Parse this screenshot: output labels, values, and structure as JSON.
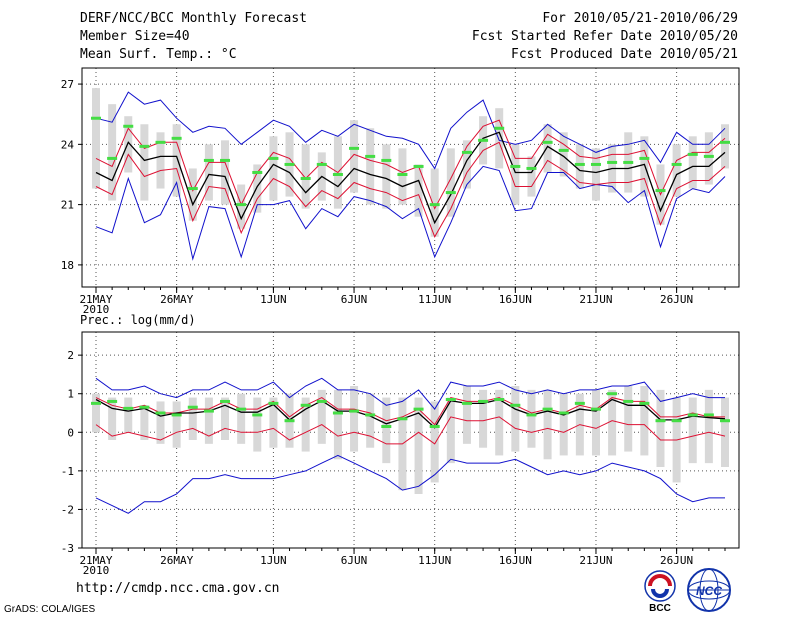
{
  "header": {
    "left": [
      "DERF/NCC/BCC Monthly Forecast",
      "Member Size=40",
      "Mean Surf. Temp.: °C"
    ],
    "right": [
      "For 2010/05/21-2010/06/29",
      "Fcst Started Refer Date 2010/05/20",
      "Fcst Produced Date 2010/05/21"
    ]
  },
  "footer": {
    "url": "http://cmdp.ncc.cma.gov.cn",
    "credit": "GrADS: COLA/IGES"
  },
  "logos": {
    "bcc": "BCC",
    "ncc": "NCC"
  },
  "colors": {
    "ensemble_mean": "#000000",
    "member_spread": "#dd1133",
    "member_extreme": "#1111cc",
    "box": "#d8d8d8",
    "climatology": "#44dd44"
  },
  "chart_data": [
    {
      "type": "line",
      "title": "Mean Surf. Temp.: °C",
      "x_tick_labels": [
        "21MAY",
        "26MAY",
        "1JUN",
        "6JUN",
        "11JUN",
        "16JUN",
        "21JUN",
        "26JUN"
      ],
      "x_tick_days": [
        1,
        6,
        12,
        17,
        22,
        27,
        32,
        37
      ],
      "x_year_label": "2010",
      "y_ticks": [
        18,
        21,
        24,
        27
      ],
      "ylim": [
        16.9,
        27.8
      ],
      "grid": true,
      "days": [
        1,
        2,
        3,
        4,
        5,
        6,
        7,
        8,
        9,
        10,
        11,
        12,
        13,
        14,
        15,
        16,
        17,
        18,
        19,
        20,
        21,
        22,
        23,
        24,
        25,
        26,
        27,
        28,
        29,
        30,
        31,
        32,
        33,
        34,
        35,
        36,
        37,
        38,
        39,
        40
      ],
      "series": [
        {
          "name": "box_high",
          "values": [
            26.8,
            26.0,
            25.4,
            25.0,
            24.6,
            25.0,
            22.8,
            24.0,
            24.2,
            22.0,
            23.0,
            24.4,
            24.6,
            24.0,
            23.6,
            24.4,
            25.2,
            24.8,
            24.0,
            23.8,
            23.0,
            22.8,
            23.8,
            24.2,
            25.4,
            25.8,
            24.0,
            23.4,
            25.0,
            24.6,
            24.0,
            23.8,
            24.0,
            24.6,
            24.4,
            23.0,
            24.0,
            24.4,
            24.6,
            25.0
          ]
        },
        {
          "name": "box_low",
          "values": [
            21.8,
            21.2,
            22.6,
            21.2,
            21.8,
            21.4,
            20.2,
            21.2,
            21.0,
            19.8,
            20.6,
            21.2,
            21.4,
            20.8,
            21.2,
            20.8,
            21.6,
            21.0,
            20.8,
            21.0,
            20.4,
            19.4,
            20.4,
            21.8,
            23.0,
            22.8,
            21.0,
            21.4,
            22.6,
            22.4,
            21.8,
            21.2,
            21.6,
            21.6,
            21.4,
            20.0,
            21.4,
            21.8,
            22.0,
            22.8
          ]
        },
        {
          "name": "climatology",
          "values": [
            25.3,
            23.3,
            24.9,
            23.9,
            24.1,
            24.3,
            21.8,
            23.2,
            23.2,
            21.0,
            22.6,
            23.3,
            23.0,
            22.3,
            23.0,
            22.5,
            23.8,
            23.4,
            23.2,
            22.5,
            22.9,
            21.0,
            21.6,
            23.6,
            24.2,
            24.8,
            22.9,
            22.8,
            24.1,
            23.7,
            23.0,
            23.0,
            23.1,
            23.1,
            23.3,
            21.7,
            23.0,
            23.5,
            23.4,
            24.1
          ]
        },
        {
          "name": "max",
          "values": [
            19.9,
            19.6,
            22.3,
            20.1,
            20.5,
            22.1,
            18.3,
            20.9,
            20.8,
            18.4,
            21.0,
            21.0,
            21.2,
            19.8,
            20.8,
            20.4,
            21.4,
            21.2,
            20.9,
            20.3,
            20.8,
            18.4,
            20.1,
            22.0,
            22.9,
            22.7,
            20.7,
            20.8,
            22.6,
            22.6,
            21.8,
            22.0,
            21.9,
            21.1,
            21.7,
            18.9,
            21.3,
            21.8,
            21.6,
            22.4
          ]
        },
        {
          "name": "min",
          "values": [
            25.3,
            25.1,
            26.6,
            26.0,
            26.2,
            25.3,
            24.6,
            24.9,
            24.8,
            24.0,
            24.6,
            25.2,
            24.9,
            24.1,
            24.7,
            24.4,
            25.0,
            24.7,
            24.4,
            24.3,
            24.0,
            22.8,
            24.8,
            25.6,
            26.2,
            24.2,
            24.0,
            24.2,
            25.0,
            24.4,
            24.0,
            23.6,
            23.9,
            24.0,
            24.2,
            23.1,
            24.6,
            24.0,
            24.0,
            24.8
          ]
        },
        {
          "name": "min_spread",
          "values": [
            21.9,
            21.5,
            23.5,
            22.4,
            22.7,
            22.8,
            20.2,
            21.9,
            21.8,
            19.6,
            21.3,
            22.3,
            21.9,
            20.9,
            21.7,
            21.3,
            22.1,
            21.8,
            21.6,
            21.2,
            21.5,
            19.4,
            20.8,
            22.6,
            23.7,
            24.1,
            21.9,
            21.9,
            23.2,
            22.7,
            22.1,
            22.0,
            22.1,
            22.1,
            22.3,
            20.0,
            21.8,
            22.2,
            22.2,
            22.9
          ]
        },
        {
          "name": "max_spread",
          "values": [
            23.3,
            22.9,
            24.8,
            23.8,
            24.1,
            24.1,
            21.7,
            23.1,
            23.1,
            21.0,
            22.6,
            23.6,
            23.3,
            22.3,
            23.1,
            22.6,
            23.5,
            23.2,
            23.0,
            22.6,
            22.9,
            20.8,
            22.3,
            23.9,
            24.9,
            25.2,
            23.3,
            23.3,
            24.5,
            24.0,
            23.4,
            23.3,
            23.5,
            23.5,
            23.7,
            21.5,
            23.2,
            23.6,
            23.6,
            24.3
          ]
        },
        {
          "name": "mean",
          "values": [
            22.6,
            22.2,
            24.1,
            23.2,
            23.4,
            23.4,
            21.0,
            22.5,
            22.4,
            20.3,
            21.9,
            23.0,
            22.6,
            21.6,
            22.4,
            21.9,
            22.8,
            22.5,
            22.3,
            21.9,
            22.2,
            20.1,
            21.5,
            23.2,
            24.3,
            24.6,
            22.6,
            22.6,
            23.9,
            23.4,
            22.7,
            22.6,
            22.8,
            22.8,
            23.0,
            20.7,
            22.5,
            22.9,
            22.9,
            23.6
          ]
        }
      ]
    },
    {
      "type": "line",
      "title": "Prec.: log(mm/d)",
      "x_tick_labels": [
        "21MAY",
        "26MAY",
        "1JUN",
        "6JUN",
        "11JUN",
        "16JUN",
        "21JUN",
        "26JUN"
      ],
      "x_tick_days": [
        1,
        6,
        12,
        17,
        22,
        27,
        32,
        37
      ],
      "x_year_label": "2010",
      "y_ticks": [
        -3,
        -2,
        -1,
        0,
        1,
        2
      ],
      "ylim": [
        -3,
        2.6
      ],
      "grid": true,
      "days": [
        1,
        2,
        3,
        4,
        5,
        6,
        7,
        8,
        9,
        10,
        11,
        12,
        13,
        14,
        15,
        16,
        17,
        18,
        19,
        20,
        21,
        22,
        23,
        24,
        25,
        26,
        27,
        28,
        29,
        30,
        31,
        32,
        33,
        34,
        35,
        36,
        37,
        38,
        39,
        40
      ],
      "series": [
        {
          "name": "box_high",
          "values": [
            1.0,
            0.9,
            0.9,
            0.7,
            0.8,
            0.8,
            0.9,
            0.9,
            0.9,
            1.0,
            0.9,
            0.9,
            1.0,
            0.9,
            1.1,
            1.1,
            1.2,
            1.0,
            0.9,
            0.9,
            0.9,
            0.8,
            0.9,
            1.2,
            1.1,
            1.1,
            1.2,
            1.1,
            1.1,
            1.0,
            1.0,
            1.1,
            1.1,
            1.2,
            1.2,
            1.1,
            0.9,
            0.9,
            1.1,
            0.9
          ]
        },
        {
          "name": "box_low",
          "values": [
            0.0,
            -0.2,
            0.0,
            -0.2,
            -0.3,
            -0.4,
            -0.2,
            -0.3,
            -0.2,
            -0.3,
            -0.5,
            -0.4,
            -0.4,
            -0.5,
            -0.3,
            -0.7,
            -0.5,
            -0.4,
            -0.8,
            -1.5,
            -1.6,
            -1.3,
            -0.8,
            -0.3,
            -0.4,
            -0.6,
            -0.5,
            -0.4,
            -0.7,
            -0.6,
            -0.6,
            -0.6,
            -0.6,
            -0.5,
            -0.6,
            -0.9,
            -1.3,
            -0.8,
            -0.8,
            -0.9
          ]
        },
        {
          "name": "climatology",
          "values": [
            0.75,
            0.8,
            0.62,
            0.65,
            0.5,
            0.45,
            0.65,
            0.55,
            0.8,
            0.6,
            0.45,
            0.75,
            0.3,
            0.7,
            0.8,
            0.5,
            0.55,
            0.45,
            0.15,
            0.35,
            0.6,
            0.15,
            0.85,
            0.75,
            0.8,
            0.85,
            0.7,
            0.45,
            0.6,
            0.5,
            0.75,
            0.6,
            1.0,
            0.8,
            0.75,
            0.3,
            0.3,
            0.45,
            0.45,
            0.3
          ]
        },
        {
          "name": "max",
          "values": [
            -1.7,
            -1.9,
            -2.1,
            -1.8,
            -1.8,
            -1.6,
            -1.2,
            -1.2,
            -1.1,
            -1.2,
            -1.2,
            -1.2,
            -1.1,
            -1.0,
            -0.8,
            -0.6,
            -0.8,
            -1.0,
            -1.2,
            -1.5,
            -1.4,
            -1.1,
            -0.7,
            -0.8,
            -0.8,
            -0.8,
            -0.7,
            -0.9,
            -1.1,
            -1.0,
            -1.1,
            -1.0,
            -0.8,
            -0.9,
            -1.0,
            -1.2,
            -1.6,
            -1.8,
            -1.7,
            -1.7
          ]
        },
        {
          "name": "min",
          "values": [
            1.4,
            1.1,
            1.1,
            1.2,
            1.0,
            0.9,
            1.1,
            1.1,
            1.3,
            1.1,
            1.1,
            1.3,
            0.9,
            1.2,
            1.4,
            1.1,
            1.1,
            1.0,
            0.7,
            0.8,
            1.1,
            0.6,
            1.3,
            1.2,
            1.2,
            1.3,
            1.1,
            1.0,
            1.1,
            1.0,
            1.1,
            1.1,
            1.2,
            1.2,
            1.3,
            0.8,
            0.9,
            1.0,
            0.9,
            0.9
          ]
        },
        {
          "name": "min_spread",
          "values": [
            0.2,
            -0.1,
            0.0,
            -0.1,
            -0.2,
            0.0,
            0.1,
            -0.1,
            0.1,
            0.0,
            0.0,
            0.1,
            -0.2,
            0.0,
            0.2,
            -0.1,
            0.0,
            -0.1,
            -0.3,
            -0.3,
            0.0,
            -0.3,
            0.4,
            0.3,
            0.3,
            0.4,
            0.1,
            0.0,
            0.1,
            0.0,
            0.2,
            0.1,
            0.3,
            0.2,
            0.2,
            -0.2,
            -0.2,
            -0.1,
            0.0,
            -0.1
          ]
        },
        {
          "name": "max_spread",
          "values": [
            0.9,
            0.7,
            0.6,
            0.7,
            0.5,
            0.5,
            0.6,
            0.6,
            0.8,
            0.6,
            0.6,
            0.8,
            0.4,
            0.7,
            0.9,
            0.6,
            0.6,
            0.5,
            0.3,
            0.4,
            0.6,
            0.2,
            0.9,
            0.8,
            0.8,
            0.9,
            0.7,
            0.5,
            0.6,
            0.5,
            0.7,
            0.6,
            0.9,
            0.8,
            0.8,
            0.4,
            0.4,
            0.5,
            0.4,
            0.4
          ]
        },
        {
          "name": "mean",
          "values": [
            0.85,
            0.62,
            0.55,
            0.62,
            0.42,
            0.5,
            0.5,
            0.55,
            0.7,
            0.52,
            0.52,
            0.72,
            0.32,
            0.6,
            0.82,
            0.55,
            0.55,
            0.42,
            0.22,
            0.35,
            0.5,
            0.12,
            0.82,
            0.75,
            0.75,
            0.85,
            0.6,
            0.45,
            0.55,
            0.45,
            0.6,
            0.55,
            0.85,
            0.7,
            0.7,
            0.32,
            0.32,
            0.42,
            0.38,
            0.35
          ]
        }
      ]
    }
  ]
}
